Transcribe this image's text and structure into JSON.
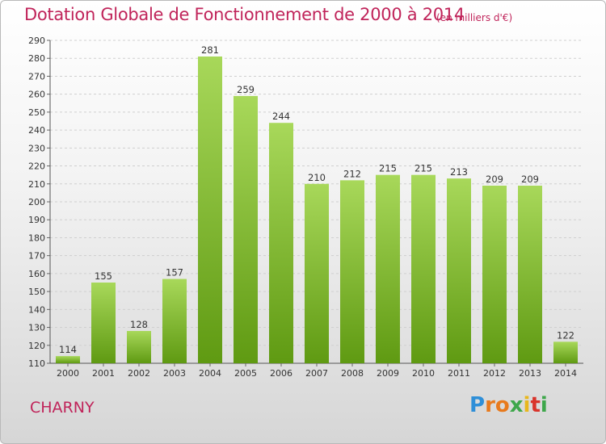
{
  "title": "Dotation Globale de Fonctionnement de 2000 à 2014",
  "subtitle": "(en milliers d'€)",
  "commune": "CHARNY",
  "logo": [
    "P",
    "r",
    "o",
    "x",
    "i",
    "t",
    "i"
  ],
  "colors": {
    "title": "#c0245a",
    "bar_light": "#a8d85a",
    "bar_dark": "#5f9a12",
    "logo_p": "#2f8fd8",
    "logo_o": "#e87a1d",
    "logo_x": "#3ea74b"
  },
  "chart_data": {
    "type": "bar",
    "categories": [
      "2000",
      "2001",
      "2002",
      "2003",
      "2004",
      "2005",
      "2006",
      "2007",
      "2008",
      "2009",
      "2010",
      "2011",
      "2012",
      "2013",
      "2014"
    ],
    "values": [
      114,
      155,
      128,
      157,
      281,
      259,
      244,
      210,
      212,
      215,
      215,
      213,
      209,
      209,
      122
    ],
    "ylim": [
      110,
      290
    ],
    "yticks": [
      110,
      120,
      130,
      140,
      150,
      160,
      170,
      180,
      190,
      200,
      210,
      220,
      230,
      240,
      250,
      260,
      270,
      280,
      290
    ],
    "grid": true,
    "xlabel": "",
    "ylabel": ""
  }
}
